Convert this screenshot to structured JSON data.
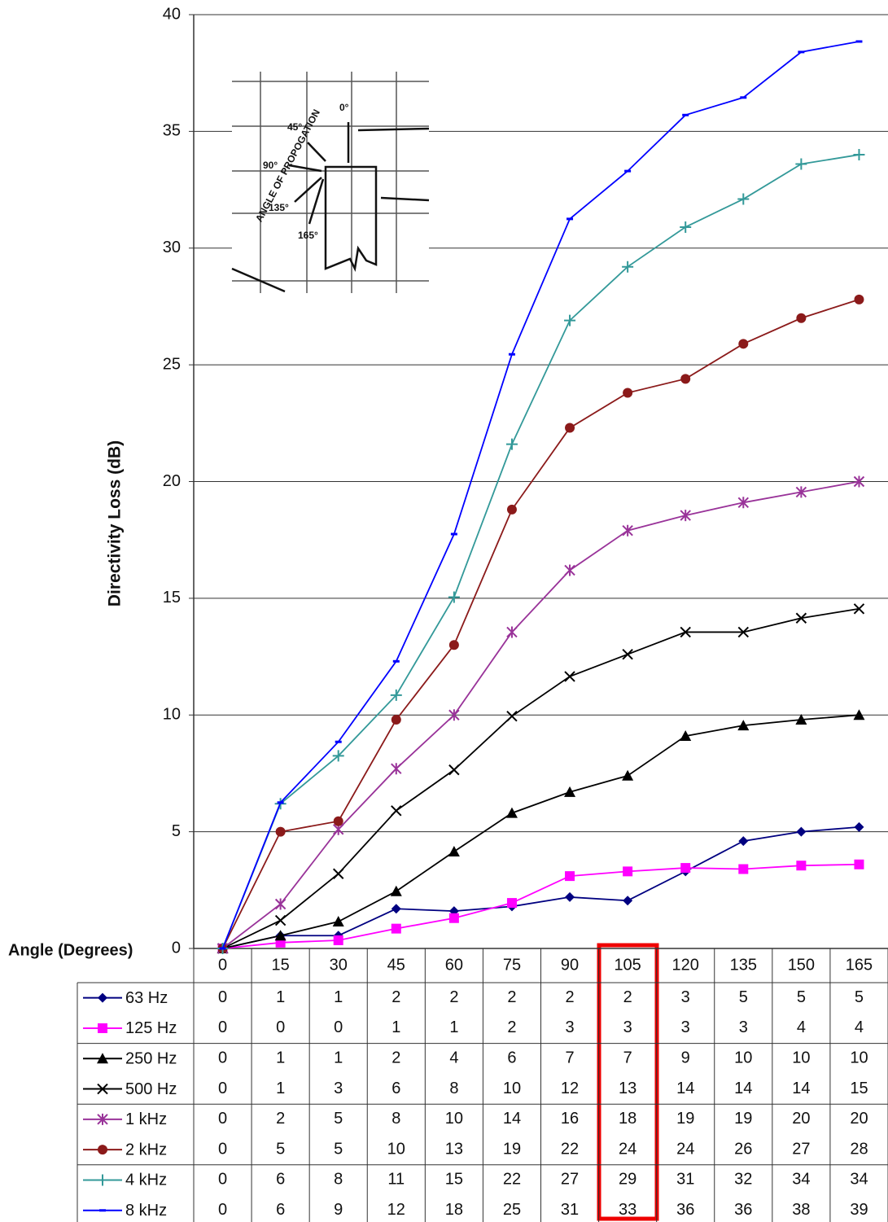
{
  "chart_data": {
    "type": "line",
    "y_label": "Directivity Loss (dB)",
    "x_label": "Angle (Degrees)",
    "categories": [
      "0",
      "15",
      "30",
      "45",
      "60",
      "75",
      "90",
      "105",
      "120",
      "135",
      "150",
      "165"
    ],
    "ylim": [
      0,
      40
    ],
    "yticks": [
      0,
      5,
      10,
      15,
      20,
      25,
      30,
      35,
      40
    ],
    "grid": true,
    "series": [
      {
        "name": "63 Hz",
        "color": "#000080",
        "marker": "diamond",
        "values": [
          0,
          0.55,
          0.55,
          1.7,
          1.6,
          1.8,
          2.2,
          2.05,
          3.3,
          4.6,
          5.0,
          5.2
        ],
        "value_labels": [
          "0",
          "1",
          "1",
          "2",
          "2",
          "2",
          "2",
          "2",
          "3",
          "5",
          "5",
          "5"
        ]
      },
      {
        "name": "125 Hz",
        "color": "#ff00ff",
        "marker": "square",
        "values": [
          0,
          0.25,
          0.35,
          0.85,
          1.3,
          1.95,
          3.1,
          3.3,
          3.45,
          3.4,
          3.55,
          3.6
        ],
        "value_labels": [
          "0",
          "0",
          "0",
          "1",
          "1",
          "2",
          "3",
          "3",
          "3",
          "3",
          "4",
          "4"
        ]
      },
      {
        "name": "250 Hz",
        "color": "#000000",
        "marker": "triangle",
        "values": [
          0,
          0.55,
          1.15,
          2.45,
          4.15,
          5.8,
          6.7,
          7.4,
          9.1,
          9.55,
          9.8,
          10.0
        ],
        "value_labels": [
          "0",
          "1",
          "1",
          "2",
          "4",
          "6",
          "7",
          "7",
          "9",
          "10",
          "10",
          "10"
        ]
      },
      {
        "name": "500 Hz",
        "color": "#000000",
        "marker": "x",
        "values": [
          0,
          1.2,
          3.2,
          5.9,
          7.65,
          9.95,
          11.65,
          12.6,
          13.55,
          13.55,
          14.15,
          14.55
        ],
        "value_labels": [
          "0",
          "1",
          "3",
          "6",
          "8",
          "10",
          "12",
          "13",
          "14",
          "14",
          "14",
          "15"
        ]
      },
      {
        "name": "1 kHz",
        "color": "#993399",
        "marker": "star",
        "values": [
          0,
          1.9,
          5.1,
          7.7,
          10.0,
          13.55,
          16.2,
          17.9,
          18.55,
          19.1,
          19.55,
          20.0
        ],
        "value_labels": [
          "0",
          "2",
          "5",
          "8",
          "10",
          "14",
          "16",
          "18",
          "19",
          "19",
          "20",
          "20"
        ]
      },
      {
        "name": "2 kHz",
        "color": "#8b1a1a",
        "marker": "circle",
        "values": [
          0,
          5.0,
          5.45,
          9.8,
          13.0,
          18.8,
          22.3,
          23.8,
          24.4,
          25.9,
          27.0,
          27.8
        ],
        "value_labels": [
          "0",
          "5",
          "5",
          "10",
          "13",
          "19",
          "22",
          "24",
          "24",
          "26",
          "27",
          "28"
        ]
      },
      {
        "name": "4 kHz",
        "color": "#339999",
        "marker": "plus",
        "values": [
          0,
          6.2,
          8.25,
          10.85,
          15.05,
          21.6,
          26.9,
          29.2,
          30.9,
          32.1,
          33.6,
          34.0
        ],
        "value_labels": [
          "0",
          "6",
          "8",
          "11",
          "15",
          "22",
          "27",
          "29",
          "31",
          "32",
          "34",
          "34"
        ]
      },
      {
        "name": "8 kHz",
        "color": "#0000ff",
        "marker": "dash",
        "values": [
          0,
          6.25,
          8.85,
          12.3,
          17.75,
          25.45,
          31.25,
          33.3,
          35.7,
          36.45,
          38.4,
          38.85
        ],
        "value_labels": [
          "0",
          "6",
          "9",
          "12",
          "18",
          "25",
          "31",
          "33",
          "36",
          "36",
          "38",
          "39"
        ]
      }
    ],
    "inset": {
      "caption": "ANGLE OF PROPOGATION",
      "angles": [
        "0°",
        "45°",
        "90°",
        "135°",
        "165°"
      ]
    }
  }
}
